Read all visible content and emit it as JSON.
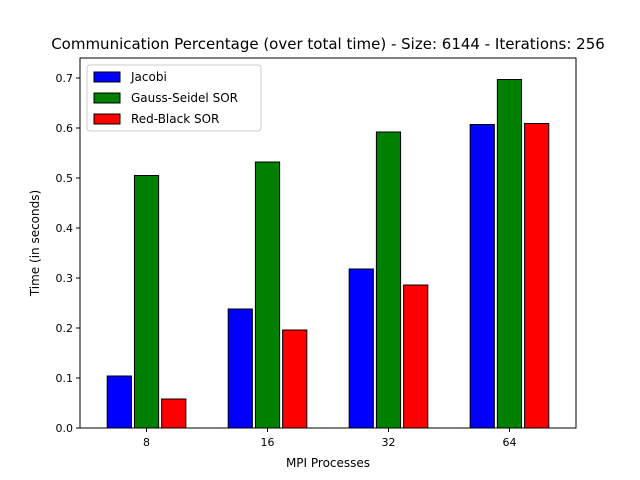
{
  "chart_data": {
    "type": "bar",
    "title": "Communication Percentage (over total time) - Size: 6144 - Iterations: 256",
    "xlabel": "MPI Processes",
    "ylabel": "Time (in seconds)",
    "categories": [
      "8",
      "16",
      "32",
      "64"
    ],
    "ylim": [
      0,
      0.74
    ],
    "yticks": [
      0.0,
      0.1,
      0.2,
      0.3,
      0.4,
      0.5,
      0.6,
      0.7
    ],
    "ytick_labels": [
      "0.0",
      "0.1",
      "0.2",
      "0.3",
      "0.4",
      "0.5",
      "0.6",
      "0.7"
    ],
    "grid": false,
    "legend_position": "top-left",
    "series": [
      {
        "name": "Jacobi",
        "color": "#0000ff",
        "values": [
          0.104,
          0.238,
          0.318,
          0.607
        ]
      },
      {
        "name": "Gauss-Seidel SOR",
        "color": "#008000",
        "values": [
          0.505,
          0.532,
          0.592,
          0.697
        ]
      },
      {
        "name": "Red-Black SOR",
        "color": "#ff0000",
        "values": [
          0.058,
          0.196,
          0.286,
          0.609
        ]
      }
    ]
  }
}
